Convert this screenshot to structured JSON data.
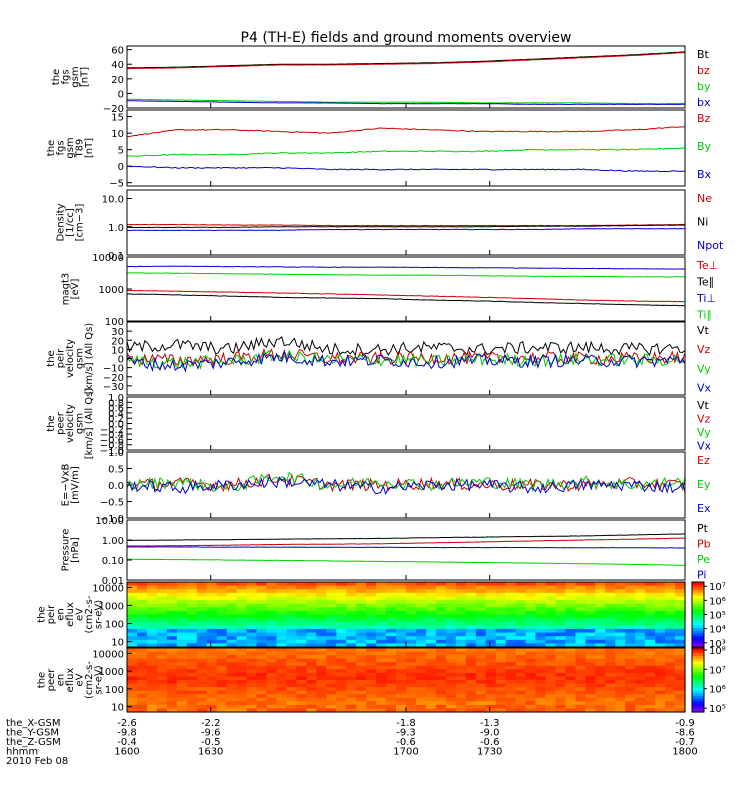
{
  "title": "P4 (TH-E) fields and ground moments overview",
  "chart_data": [
    {
      "type": "line",
      "ylabel": [
        "the",
        "fgs",
        "gsm",
        "[nT]"
      ],
      "ylim": [
        -20,
        65
      ],
      "yticks": [
        "60",
        "40",
        "20",
        "0",
        "−20"
      ],
      "yticks_v": [
        60,
        40,
        20,
        0,
        -20
      ],
      "series": [
        {
          "name": "Bt",
          "color": "#000000",
          "values": [
            35,
            36,
            38,
            40,
            40,
            41,
            42,
            44,
            47,
            50,
            53,
            57
          ]
        },
        {
          "name": "bz",
          "color": "#cc0000",
          "values": [
            34,
            35,
            37,
            39,
            39,
            40,
            41,
            43,
            46,
            49,
            52,
            56
          ]
        },
        {
          "name": "by",
          "color": "#00cc00",
          "values": [
            -8,
            -9,
            -10,
            -11,
            -12,
            -12,
            -12,
            -13,
            -13,
            -13,
            -14,
            -14
          ]
        },
        {
          "name": "bx",
          "color": "#0000cc",
          "values": [
            -10,
            -11,
            -12,
            -13,
            -13,
            -14,
            -14,
            -14,
            -15,
            -15,
            -15,
            -15
          ]
        }
      ]
    },
    {
      "type": "line",
      "ylabel": [
        "the",
        "fgs",
        "gsm",
        "T89",
        "[nT]"
      ],
      "ylim": [
        -6,
        17
      ],
      "yticks": [
        "15",
        "10",
        "5",
        "0",
        "−5"
      ],
      "yticks_v": [
        15,
        10,
        5,
        0,
        -5
      ],
      "series": [
        {
          "name": "Bz",
          "color": "#cc0000",
          "values": [
            9,
            11,
            11,
            10.5,
            10,
            11.5,
            11,
            10.5,
            10.5,
            10.5,
            11,
            12
          ]
        },
        {
          "name": "By",
          "color": "#00cc00",
          "values": [
            3,
            3.5,
            3.5,
            4,
            4,
            4.5,
            4.5,
            4.5,
            5,
            5,
            5,
            5.5
          ]
        },
        {
          "name": "Bx",
          "color": "#0000cc",
          "values": [
            0,
            -0.5,
            -0.5,
            -0.5,
            -1,
            -1,
            -1,
            -1,
            -1,
            -1,
            -1.5,
            -1.5
          ]
        }
      ]
    },
    {
      "type": "line",
      "scale": "log",
      "ylabel": [
        "Density",
        "[1/cc]",
        "[cm−3]"
      ],
      "ylim": [
        0.1,
        20
      ],
      "yticks": [
        "10.0",
        "1.0",
        "0.1"
      ],
      "yticks_v": [
        10,
        1,
        0.1
      ],
      "series": [
        {
          "name": "Ne",
          "color": "#cc0000",
          "values": [
            1.2,
            1.2,
            1.15,
            1.15,
            1.1,
            1.1,
            1.1,
            1.1,
            1.1,
            1.1,
            1.15,
            1.2
          ]
        },
        {
          "name": "Ni",
          "color": "#000000",
          "values": [
            0.95,
            0.95,
            0.95,
            1.0,
            1.0,
            1.0,
            1.0,
            1.0,
            1.05,
            1.05,
            1.1,
            1.15
          ]
        },
        {
          "name": "Npot",
          "color": "#0000cc",
          "values": [
            0.75,
            0.75,
            0.75,
            0.75,
            0.8,
            0.8,
            0.8,
            0.8,
            0.8,
            0.85,
            0.85,
            0.85
          ]
        }
      ]
    },
    {
      "type": "line",
      "scale": "log",
      "ylabel": [
        "magt3",
        "[eV]"
      ],
      "ylim": [
        100,
        10000
      ],
      "yticks": [
        "10000",
        "1000",
        "100"
      ],
      "yticks_v": [
        10000,
        1000,
        100
      ],
      "series": [
        {
          "name": "Te⊥",
          "color": "#cc0000",
          "values": [
            900,
            850,
            800,
            750,
            700,
            650,
            600,
            550,
            500,
            450,
            420,
            400
          ]
        },
        {
          "name": "Te∥",
          "color": "#000000",
          "values": [
            700,
            650,
            600,
            550,
            520,
            500,
            450,
            420,
            380,
            350,
            320,
            300
          ]
        },
        {
          "name": "Ti⊥",
          "color": "#0000cc",
          "values": [
            5000,
            5200,
            5000,
            4900,
            4800,
            4800,
            4700,
            4600,
            4500,
            4400,
            4300,
            4200
          ]
        },
        {
          "name": "Ti∥",
          "color": "#00cc00",
          "values": [
            3200,
            3100,
            3000,
            2900,
            2800,
            2700,
            2700,
            2600,
            2500,
            2500,
            2400,
            2400
          ]
        }
      ]
    },
    {
      "type": "line",
      "ylabel": [
        "the",
        "peir",
        "velocity",
        "gsm",
        "[km/s] (All Qs)"
      ],
      "ylim": [
        -40,
        40
      ],
      "yticks": [
        "30",
        "20",
        "10",
        "0",
        "−10",
        "−20",
        "−30"
      ],
      "yticks_v": [
        30,
        20,
        10,
        0,
        -10,
        -20,
        -30
      ],
      "series": [
        {
          "name": "Vt",
          "color": "#000000",
          "values": [
            12,
            15,
            10,
            20,
            10,
            10,
            12,
            10,
            12,
            12,
            10,
            12
          ]
        },
        {
          "name": "Vz",
          "color": "#cc0000",
          "values": [
            0,
            -2,
            0,
            5,
            0,
            0,
            1,
            0,
            1,
            0,
            0,
            1
          ]
        },
        {
          "name": "Vy",
          "color": "#00cc00",
          "values": [
            -2,
            -5,
            -3,
            3,
            -2,
            -1,
            -3,
            -1,
            -2,
            -1,
            -2,
            -1
          ]
        },
        {
          "name": "Vx",
          "color": "#0000cc",
          "values": [
            -4,
            -8,
            -4,
            2,
            -3,
            -2,
            -4,
            -2,
            -3,
            -2,
            -3,
            -2
          ]
        }
      ]
    },
    {
      "type": "line",
      "ylabel": [
        "the",
        "peer",
        "velocity",
        "gsm",
        "[km/s] (All Qs)"
      ],
      "ylim": [
        -1,
        1
      ],
      "yticks": [
        "1.0",
        "0.8",
        "0.6",
        "0.4",
        "0.2",
        "0.0",
        "−0.2",
        "−0.4",
        "−0.6",
        "−0.8",
        "−1.0"
      ],
      "yticks_v": [
        1.0,
        0.8,
        0.6,
        0.4,
        0.2,
        0.0,
        -0.2,
        -0.4,
        -0.6,
        -0.8,
        -1.0
      ],
      "series": [
        {
          "name": "Vt",
          "color": "#000000",
          "values": []
        },
        {
          "name": "Vz",
          "color": "#cc0000",
          "values": []
        },
        {
          "name": "Vy",
          "color": "#00cc00",
          "values": []
        },
        {
          "name": "Vx",
          "color": "#0000cc",
          "values": []
        }
      ]
    },
    {
      "type": "line",
      "ylabel": [
        "E=−VxB",
        "[mV/m]"
      ],
      "ylim": [
        -1.0,
        1.0
      ],
      "yticks": [
        "1.0",
        "0.5",
        "0.0",
        "−0.5",
        "−1.0"
      ],
      "yticks_v": [
        1.0,
        0.5,
        0.0,
        -0.5,
        -1.0
      ],
      "series": [
        {
          "name": "Ez",
          "color": "#cc0000",
          "values": [
            0,
            0.05,
            0,
            0.2,
            0,
            0,
            0.05,
            0,
            0,
            0,
            0.05,
            0
          ]
        },
        {
          "name": "Ey",
          "color": "#00cc00",
          "values": [
            0,
            0.1,
            -0.1,
            0.3,
            0,
            0.1,
            0,
            0.1,
            0,
            0.1,
            0,
            0.1
          ]
        },
        {
          "name": "Ex",
          "color": "#0000cc",
          "values": [
            0,
            -0.1,
            0,
            0.1,
            0,
            -0.1,
            0,
            0,
            -0.1,
            0,
            0,
            -0.1
          ]
        }
      ]
    },
    {
      "type": "line",
      "scale": "log",
      "ylabel": [
        "Pressure",
        "[nPa]"
      ],
      "ylim": [
        0.01,
        10
      ],
      "yticks": [
        "10.00",
        "1.00",
        "0.10",
        "0.01"
      ],
      "yticks_v": [
        10,
        1,
        0.1,
        0.01
      ],
      "series": [
        {
          "name": "Pt",
          "color": "#000000",
          "values": [
            0.95,
            1.0,
            1.05,
            1.1,
            1.15,
            1.2,
            1.3,
            1.4,
            1.5,
            1.6,
            1.8,
            2.0
          ]
        },
        {
          "name": "Pb",
          "color": "#cc0000",
          "values": [
            0.5,
            0.52,
            0.55,
            0.6,
            0.62,
            0.65,
            0.72,
            0.8,
            0.9,
            1.0,
            1.1,
            1.25
          ]
        },
        {
          "name": "Pe",
          "color": "#00cc00",
          "values": [
            0.11,
            0.105,
            0.1,
            0.095,
            0.09,
            0.085,
            0.08,
            0.075,
            0.07,
            0.065,
            0.06,
            0.055
          ]
        },
        {
          "name": "Pi",
          "color": "#0000cc",
          "values": [
            0.45,
            0.45,
            0.44,
            0.44,
            0.43,
            0.43,
            0.42,
            0.42,
            0.42,
            0.41,
            0.41,
            0.4
          ]
        }
      ]
    },
    {
      "type": "heatmap",
      "scale": "log",
      "ylabel": [
        "the",
        "peir",
        "en",
        "eflux",
        "eV",
        "(cm2-s-",
        "sr-eV)"
      ],
      "ylim": [
        5,
        20000
      ],
      "yticks": [
        "10000",
        "1000",
        "100",
        "10"
      ],
      "yticks_v": [
        10000,
        1000,
        100,
        10
      ],
      "colorbar": {
        "ticks": [
          "10⁷",
          "10⁶",
          "10⁵",
          "10⁴",
          "10³"
        ],
        "tick_exp": [
          7,
          6,
          5,
          4,
          3
        ],
        "range_exp": [
          2.7,
          7.3
        ]
      }
    },
    {
      "type": "heatmap",
      "scale": "log",
      "ylabel": [
        "the",
        "peer",
        "en",
        "eflux",
        "eV",
        "(cm2-s-",
        "sr-eV)"
      ],
      "ylim": [
        5,
        20000
      ],
      "yticks": [
        "10000",
        "1000",
        "100",
        "10"
      ],
      "yticks_v": [
        10000,
        1000,
        100,
        10
      ],
      "colorbar": {
        "ticks": [
          "10⁸",
          "10⁷",
          "10⁶",
          "10⁵"
        ],
        "tick_exp": [
          8,
          7,
          6,
          5
        ],
        "range_exp": [
          4.8,
          8.1
        ]
      }
    }
  ],
  "xaxis": {
    "range": [
      1600,
      1800
    ],
    "tick_positions": [
      1600,
      1630,
      1700,
      1730,
      1800
    ],
    "rows": [
      {
        "label": "the_X-GSM",
        "values": [
          "-2.6",
          "-2.2",
          "-1.8",
          "-1.3",
          "-0.9"
        ]
      },
      {
        "label": "the_Y-GSM",
        "values": [
          "-9.8",
          "-9.6",
          "-9.3",
          "-9.0",
          "-8.6"
        ]
      },
      {
        "label": "the_Z-GSM",
        "values": [
          "-0.4",
          "-0.5",
          "-0.6",
          "-0.6",
          "-0.7"
        ]
      },
      {
        "label": "hhmm",
        "values": [
          "1600",
          "1630",
          "1700",
          "1730",
          "1800"
        ]
      }
    ],
    "date": "2010 Feb 08"
  }
}
